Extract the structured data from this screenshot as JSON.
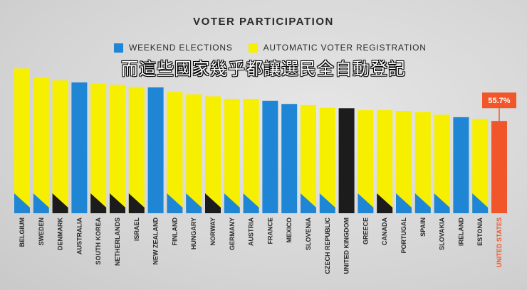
{
  "subtitle": "而這些國家幾乎都讓選民全自動登記",
  "colors": {
    "blue": "#1f86d6",
    "yellow": "#f7ef00",
    "black": "#1c1c1c",
    "orange": "#f0562a",
    "label": "#2a2a2a"
  },
  "chart_data": {
    "type": "bar",
    "title": "VOTER PARTICIPATION",
    "legend": [
      {
        "label": "WEEKEND ELECTIONS",
        "color": "#1f86d6"
      },
      {
        "label": "AUTOMATIC VOTER REGISTRATION",
        "color": "#f7ef00"
      }
    ],
    "legend_placement": "top-center",
    "ylim": [
      0,
      100
    ],
    "grid": false,
    "highlight": {
      "category": "UNITED STATES",
      "label": "55.7%"
    },
    "categories": [
      "BELGIUM",
      "SWEDEN",
      "DENMARK",
      "AUSTRALIA",
      "SOUTH KOREA",
      "NETHERLANDS",
      "ISRAEL",
      "NEW ZEALAND",
      "FINLAND",
      "HUNGARY",
      "NORWAY",
      "GERMANY",
      "AUSTRIA",
      "FRANCE",
      "MEXICO",
      "SLOVENIA",
      "CZECH REPUBLIC",
      "UNITED KINGDOM",
      "GREECE",
      "CANADA",
      "PORTUGAL",
      "SPAIN",
      "SLOVAKIA",
      "IRELAND",
      "ESTONIA",
      "UNITED STATES"
    ],
    "values": [
      87.4,
      82.1,
      80.2,
      79.0,
      78.2,
      77.5,
      76.3,
      76.0,
      73.3,
      71.8,
      70.6,
      69.1,
      69.1,
      67.9,
      66.0,
      65.3,
      63.7,
      63.4,
      62.2,
      62.2,
      61.8,
      61.1,
      59.5,
      58.0,
      56.9,
      55.7
    ],
    "styles": [
      "yellow-blue",
      "yellow-blue",
      "yellow-black",
      "blue",
      "yellow-black",
      "yellow-black",
      "yellow-black",
      "blue",
      "yellow-blue",
      "yellow-blue",
      "yellow-black",
      "yellow-blue",
      "yellow-blue",
      "blue",
      "blue",
      "yellow-blue",
      "yellow-blue",
      "black",
      "yellow-blue",
      "yellow-black",
      "yellow-blue",
      "yellow-blue",
      "yellow-blue",
      "blue",
      "yellow-blue",
      "orange"
    ]
  }
}
